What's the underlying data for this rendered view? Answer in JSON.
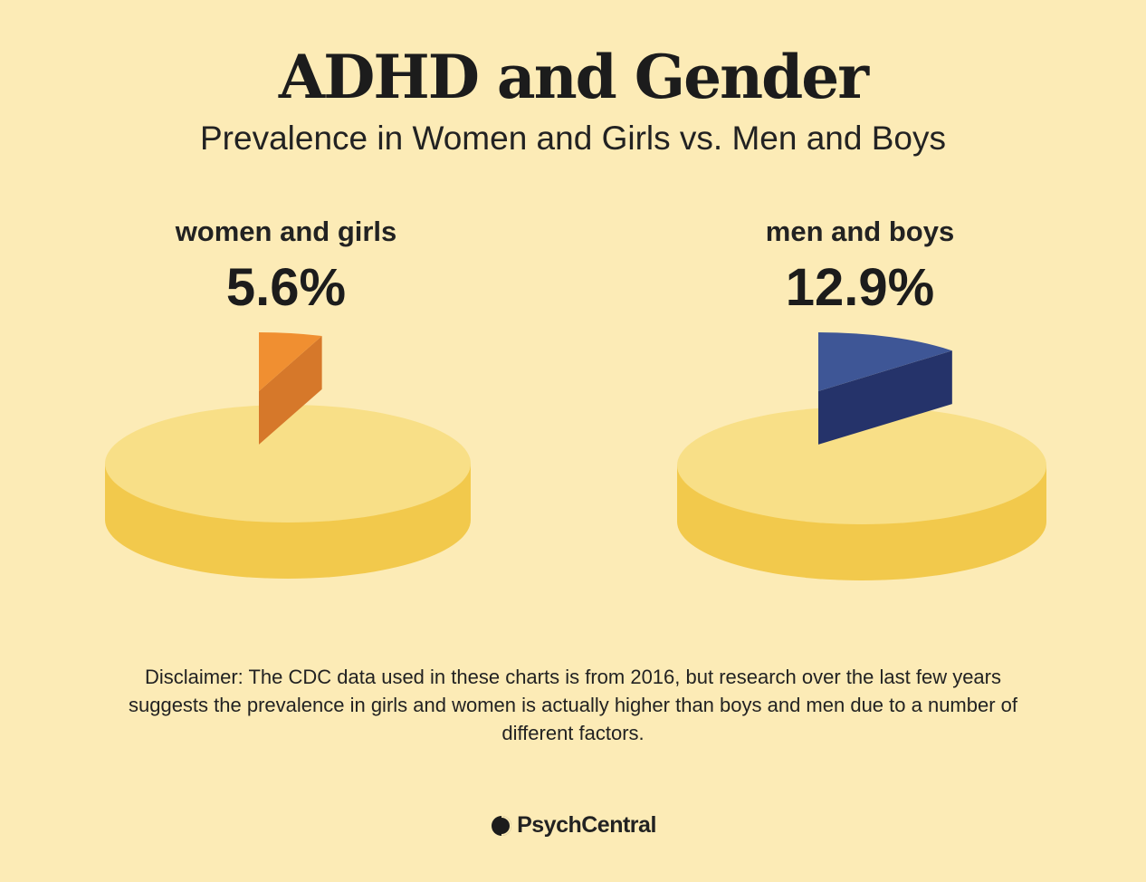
{
  "title": "ADHD and Gender",
  "subtitle": "Prevalence in Women and Girls vs. Men and Boys",
  "chart_data": [
    {
      "type": "pie",
      "title": "women and girls",
      "value_label": "5.6%",
      "slices": [
        {
          "name": "women and girls with ADHD",
          "value": 5.6,
          "color": "#e07f2c"
        },
        {
          "name": "other",
          "value": 94.4,
          "color": "#f8df87"
        }
      ]
    },
    {
      "type": "pie",
      "title": "men and boys",
      "value_label": "12.9%",
      "slices": [
        {
          "name": "men and boys with ADHD",
          "value": 12.9,
          "color": "#2d3f7c"
        },
        {
          "name": "other",
          "value": 87.1,
          "color": "#f8df87"
        }
      ]
    }
  ],
  "colors": {
    "background": "#fcebb6",
    "pie_top": "#f8df87",
    "pie_side": "#f2c94c",
    "orange_top": "#f08f31",
    "orange_side": "#d6782a",
    "blue_top": "#3e5696",
    "blue_side": "#25336a"
  },
  "disclaimer": "Disclaimer: The CDC data used in these charts is from 2016, but research over the last few years suggests the prevalence in girls and women is actually higher than boys and men due to a number of different factors.",
  "brand": {
    "name": "PsychCentral",
    "icon": "psychcentral-logo-icon"
  }
}
